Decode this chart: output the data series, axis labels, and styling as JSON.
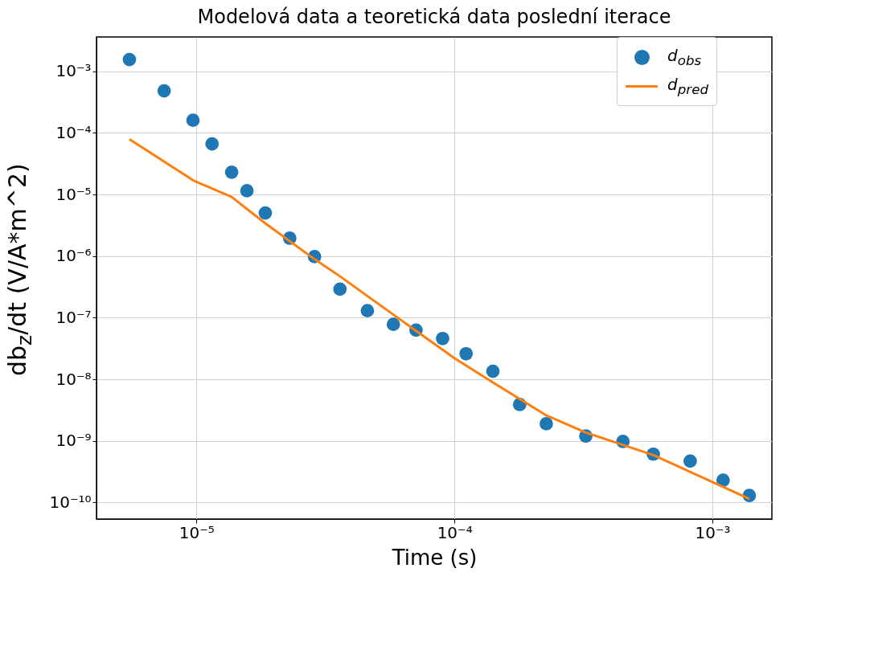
{
  "chart_data": {
    "type": "scatter",
    "title": "Modelová data a teoretická data poslední iterace",
    "xlabel": "Time (s)",
    "ylabel": "db$_{z}$/dt (V/A*m^2)",
    "log": "xy",
    "grid": true,
    "legend": "top right",
    "xlim": [
      4.1e-06,
      0.0017
    ],
    "ylim": [
      5.4e-11,
      0.0036
    ],
    "xticks": [
      {
        "value": 1e-05,
        "label": "10⁻⁵"
      },
      {
        "value": 0.0001,
        "label": "10⁻⁴"
      },
      {
        "value": 0.001,
        "label": "10⁻³"
      }
    ],
    "yticks": [
      {
        "value": 1e-10,
        "label": "10⁻¹⁰"
      },
      {
        "value": 1e-09,
        "label": "10⁻⁹"
      },
      {
        "value": 1e-08,
        "label": "10⁻⁸"
      },
      {
        "value": 1e-07,
        "label": "10⁻⁷"
      },
      {
        "value": 1e-06,
        "label": "10⁻⁶"
      },
      {
        "value": 1e-05,
        "label": "10⁻⁵"
      },
      {
        "value": 0.0001,
        "label": "10⁻⁴"
      },
      {
        "value": 0.001,
        "label": "10⁻³"
      }
    ],
    "series": [
      {
        "name": "d$_{obs}$",
        "marker": "circle",
        "color": "#1f77b4",
        "x": [
          5.5e-06,
          7.5e-06,
          9.7e-06,
          1.15e-05,
          1.37e-05,
          1.57e-05,
          1.85e-05,
          2.3e-05,
          2.87e-05,
          3.6e-05,
          4.6e-05,
          5.8e-05,
          7.1e-05,
          9e-05,
          0.000111,
          0.000141,
          0.000179,
          0.000227,
          0.000323,
          0.00045,
          0.00059,
          0.00082,
          0.0011,
          0.00139
        ],
        "values": [
          0.00155,
          0.00048,
          0.00016,
          6.6e-05,
          2.3e-05,
          1.15e-05,
          5e-06,
          1.95e-06,
          9.8e-07,
          2.9e-07,
          1.3e-07,
          7.8e-08,
          6.3e-08,
          4.6e-08,
          2.6e-08,
          1.35e-08,
          3.9e-09,
          1.9e-09,
          1.2e-09,
          9.8e-10,
          6.1e-10,
          4.7e-10,
          2.3e-10,
          1.3e-10
        ]
      },
      {
        "name": "d$_{pred}$",
        "type": "line",
        "marker": "none",
        "color": "#ff7f0e",
        "x": [
          5.5e-06,
          9.7e-06,
          1.37e-05,
          1.85e-05,
          2.87e-05,
          3.6e-05,
          5.8e-05,
          0.0001,
          0.000141,
          0.000227,
          0.000323,
          0.00059,
          0.00139
        ],
        "values": [
          7.9e-05,
          1.7e-05,
          9.1e-06,
          3.4e-06,
          8.9e-07,
          4.7e-07,
          1.12e-07,
          2.2e-08,
          8.9e-09,
          2.6e-09,
          1.37e-09,
          5.9e-10,
          1.15e-10
        ]
      }
    ]
  }
}
